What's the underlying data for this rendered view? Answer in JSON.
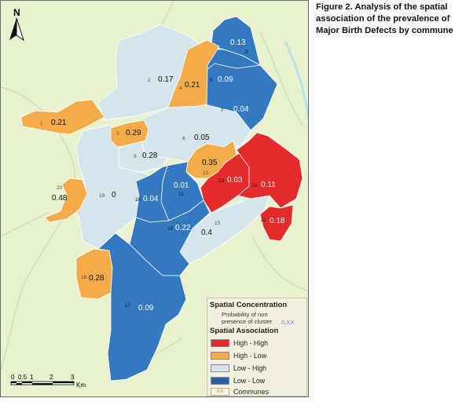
{
  "caption": {
    "line1": "Figure 2. Analysis of the spatial",
    "line2": "association of the prevalence of",
    "line3": "Major Birth Defects by commune"
  },
  "north_arrow": {
    "label": "N"
  },
  "scale_bar": {
    "ticks": [
      "0",
      "0.5",
      "1",
      "2",
      "3"
    ],
    "unit": "Km"
  },
  "legend": {
    "concentration_title": "Spatial Concentration",
    "probability_line1": "Probability of non",
    "probability_line2": "presence of cluster",
    "probability_symbol": "0,XX",
    "association_title": "Spatial Association",
    "classes": [
      {
        "label": "High - High",
        "color": "#e32b2b"
      },
      {
        "label": "High - Low",
        "color": "#f4ac4a"
      },
      {
        "label": "Low - High",
        "color": "#d5e5ec"
      },
      {
        "label": "Low - Low",
        "color": "#2f5fa8"
      }
    ],
    "communes_symbol": "XX",
    "communes_label": "Communes"
  },
  "colors": {
    "background_land": "#e9f2cf",
    "river": "#b9e1ea",
    "border": "#ffffff",
    "high_high": "#e32b2b",
    "high_low": "#f4ac4a",
    "low_high": "#d5e5ec",
    "low_low": "#3279bf"
  },
  "communes": [
    {
      "id": "1",
      "value": "0.21",
      "class": "high_low"
    },
    {
      "id": "2",
      "value": "0.17",
      "class": "low_high"
    },
    {
      "id": "3",
      "value": "0.29",
      "class": "high_low"
    },
    {
      "id": "4",
      "value": "0.21",
      "class": "high_low"
    },
    {
      "id": "5",
      "value": "0.09",
      "class": "low_low"
    },
    {
      "id": "6",
      "value": "0.13",
      "class": "low_low"
    },
    {
      "id": "7",
      "value": "0.04",
      "class": "low_low"
    },
    {
      "id": "8",
      "value": "0.05",
      "class": "low_high"
    },
    {
      "id": "9",
      "value": "0.28",
      "class": "low_high"
    },
    {
      "id": "10",
      "value": "0.04",
      "class": "low_low"
    },
    {
      "id": "11",
      "value": "0.01",
      "class": "low_low"
    },
    {
      "id": "12",
      "value": "0.35",
      "class": "high_low"
    },
    {
      "id": "13",
      "value": "0.03",
      "class": "high_high"
    },
    {
      "id": "14",
      "value": "0.11",
      "class": "high_high"
    },
    {
      "id": "15",
      "value": "0.4",
      "class": "low_high"
    },
    {
      "id": "16",
      "value": "0.22",
      "class": "low_low"
    },
    {
      "id": "17",
      "value": "0.09",
      "class": "low_low"
    },
    {
      "id": "18",
      "value": "0.28",
      "class": "high_low"
    },
    {
      "id": "19",
      "value": "0",
      "class": "low_high"
    },
    {
      "id": "20",
      "value": "0.48",
      "class": "high_low"
    },
    {
      "id": "21",
      "value": "0.18",
      "class": "high_high"
    }
  ]
}
